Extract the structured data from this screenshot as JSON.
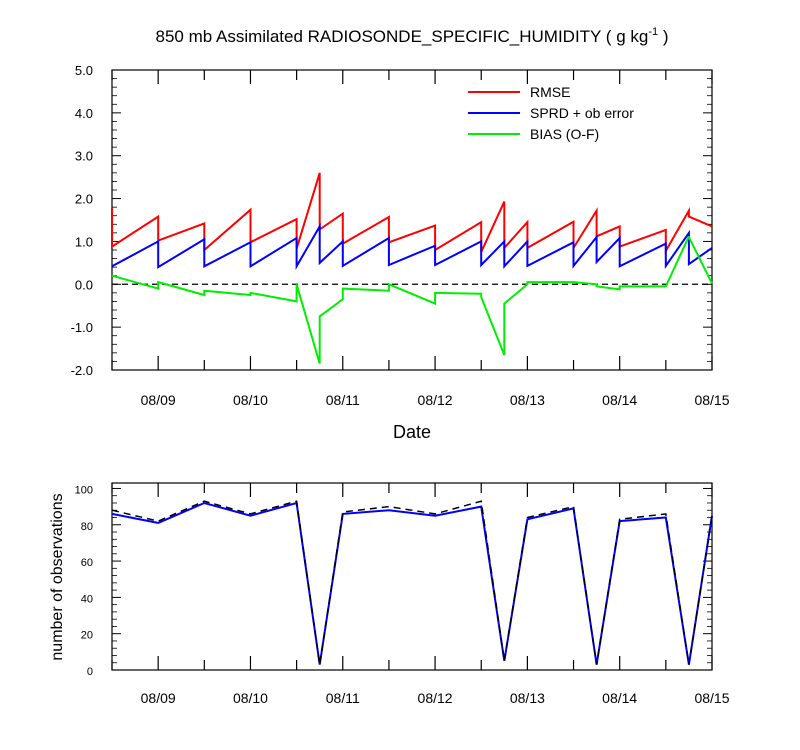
{
  "chart_data": [
    {
      "type": "line",
      "title": "850 mb Assimilated RADIOSONDE_SPECIFIC_HUMIDITY ( g kg",
      "title_superscript": "-1",
      "title_suffix": " )",
      "xlabel": "Date",
      "ylabel": "",
      "xlim": [
        0,
        6.5
      ],
      "ylim": [
        -2.0,
        5.0
      ],
      "yticks": [
        -2.0,
        -1.0,
        0.0,
        1.0,
        2.0,
        3.0,
        4.0,
        5.0
      ],
      "ytick_labels": [
        "-2.0",
        "-1.0",
        "0.0",
        "1.0",
        "2.0",
        "3.0",
        "4.0",
        "5.0"
      ],
      "xticks": [
        0.5,
        1.5,
        2.5,
        3.5,
        4.5,
        5.5,
        6.5
      ],
      "xtick_labels": [
        "08/09",
        "08/10",
        "08/11",
        "08/12",
        "08/13",
        "08/14",
        "08/15"
      ],
      "reference_line": {
        "y": 0.0,
        "style": "dashed"
      },
      "legend_position": "top-right",
      "series": [
        {
          "name": "RMSE",
          "color": "#ff0000",
          "x": [
            0,
            0,
            0.5,
            0.5,
            1,
            1,
            1.5,
            1.5,
            2,
            2,
            2.25,
            2.25,
            2.5,
            2.5,
            3,
            3,
            3.5,
            3.5,
            4,
            4,
            4.25,
            4.25,
            4.5,
            4.5,
            5,
            5,
            5.25,
            5.25,
            5.5,
            5.5,
            6,
            6,
            6.25,
            6.25,
            6.5
          ],
          "y": [
            1.77,
            0.88,
            1.58,
            1.02,
            1.42,
            0.8,
            1.74,
            0.98,
            1.52,
            0.83,
            2.6,
            1.28,
            1.65,
            0.95,
            1.57,
            0.98,
            1.37,
            0.8,
            1.45,
            0.75,
            1.93,
            0.85,
            1.45,
            0.85,
            1.46,
            0.85,
            1.72,
            1.12,
            1.35,
            0.88,
            1.27,
            0.78,
            1.72,
            1.58,
            1.35
          ]
        },
        {
          "name": "SPRD + ob error",
          "color": "#0000ff",
          "x": [
            0,
            0.5,
            0.5,
            1,
            1,
            1.5,
            1.5,
            2,
            2,
            2.25,
            2.25,
            2.5,
            2.5,
            3,
            3,
            3.5,
            3.5,
            4,
            4,
            4.25,
            4.25,
            4.5,
            4.5,
            5,
            5,
            5.25,
            5.25,
            5.5,
            5.5,
            6,
            6,
            6.25,
            6.25,
            6.5
          ],
          "y": [
            0.42,
            1.0,
            0.4,
            1.05,
            0.42,
            0.98,
            0.42,
            1.08,
            0.42,
            1.35,
            0.5,
            1.0,
            0.43,
            1.08,
            0.45,
            0.9,
            0.45,
            1.0,
            0.45,
            1.0,
            0.42,
            1.0,
            0.43,
            0.98,
            0.43,
            1.1,
            0.52,
            1.08,
            0.42,
            0.95,
            0.43,
            1.2,
            0.47,
            0.85
          ]
        },
        {
          "name": "BIAS (O-F)",
          "color": "#00ee00",
          "x": [
            0,
            0.5,
            0.5,
            1,
            1,
            1.5,
            1.5,
            2,
            2,
            2.25,
            2.25,
            2.5,
            2.5,
            3,
            3,
            3.5,
            3.5,
            4,
            4,
            4.25,
            4.25,
            4.5,
            4.5,
            5,
            5,
            5.25,
            5.25,
            5.5,
            5.5,
            6,
            6,
            6.25,
            6.25,
            6.5
          ],
          "y": [
            0.2,
            -0.1,
            0.05,
            -0.25,
            -0.15,
            -0.25,
            -0.2,
            -0.4,
            0.0,
            -1.85,
            -0.75,
            -0.35,
            -0.1,
            -0.15,
            0.0,
            -0.45,
            -0.2,
            -0.22,
            -0.3,
            -1.65,
            -0.45,
            0.0,
            0.05,
            0.05,
            0.05,
            0.0,
            -0.05,
            -0.12,
            -0.05,
            -0.05,
            -0.05,
            1.12,
            1.1,
            0.02
          ]
        }
      ]
    },
    {
      "type": "line",
      "title": "",
      "xlabel": "",
      "ylabel": "number of observations",
      "xlim": [
        0,
        6.5
      ],
      "ylim": [
        0,
        103
      ],
      "yticks": [
        0,
        20,
        40,
        60,
        80,
        100
      ],
      "ytick_labels": [
        "0",
        "20",
        "40",
        "60",
        "80",
        "100"
      ],
      "xticks": [
        0.5,
        1.5,
        2.5,
        3.5,
        4.5,
        5.5,
        6.5
      ],
      "xtick_labels": [
        "08/09",
        "08/10",
        "08/11",
        "08/12",
        "08/13",
        "08/14",
        "08/15"
      ],
      "series": [
        {
          "color": "#0000ff",
          "style": "solid",
          "x": [
            0,
            0.5,
            1,
            1.5,
            2,
            2.25,
            2.5,
            3,
            3.5,
            4,
            4.25,
            4.5,
            5,
            5.25,
            5.5,
            6,
            6.25,
            6.5
          ],
          "y": [
            86,
            81,
            92,
            85,
            92,
            3,
            86,
            88,
            85,
            90,
            5,
            83,
            89,
            3,
            82,
            84,
            3,
            85
          ]
        },
        {
          "color": "#000000",
          "style": "dashed",
          "x": [
            0,
            0.5,
            1,
            1.5,
            2,
            2.25,
            2.5,
            3,
            3.5,
            4,
            4.25,
            4.5,
            5,
            5.25,
            5.5,
            6,
            6.25,
            6.5
          ],
          "y": [
            88,
            82,
            93,
            86,
            93,
            3,
            87,
            90,
            86,
            93,
            5,
            84,
            90,
            3,
            83,
            86,
            3,
            85
          ]
        }
      ]
    }
  ]
}
